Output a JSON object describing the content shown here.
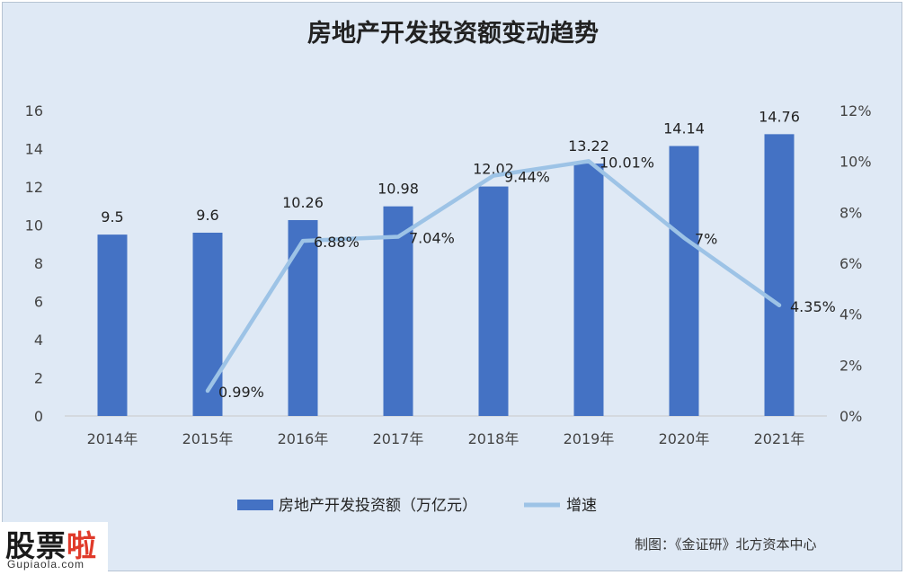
{
  "chart_data": {
    "type": "bar",
    "title": "房地产开发投资额变动趋势",
    "categories": [
      "2014年",
      "2015年",
      "2016年",
      "2017年",
      "2018年",
      "2019年",
      "2020年",
      "2021年"
    ],
    "series": [
      {
        "name": "房地产开发投资额（万亿元）",
        "type": "bar",
        "axis": "left",
        "values": [
          9.5,
          9.6,
          10.26,
          10.98,
          12.02,
          13.22,
          14.14,
          14.76
        ],
        "labels": [
          "9.5",
          "9.6",
          "10.26",
          "10.98",
          "12.02",
          "13.22",
          "14.14",
          "14.76"
        ]
      },
      {
        "name": "增速",
        "type": "line",
        "axis": "right",
        "values": [
          null,
          0.99,
          6.88,
          7.04,
          9.44,
          10.01,
          7.0,
          4.35
        ],
        "labels": [
          "",
          "0.99%",
          "6.88%",
          "7.04%",
          "9.44%",
          "10.01%",
          "7%",
          "4.35%"
        ]
      }
    ],
    "y_left": {
      "ylim": [
        0,
        16
      ],
      "ticks": [
        "0",
        "2",
        "4",
        "6",
        "8",
        "10",
        "12",
        "14",
        "16"
      ]
    },
    "y_right": {
      "ylim": [
        0,
        12
      ],
      "ticks": [
        "0%",
        "2%",
        "4%",
        "6%",
        "8%",
        "10%",
        "12%"
      ]
    },
    "legend_position": "bottom",
    "grid": false,
    "colors": {
      "bar": "#4472c4",
      "line": "#9dc3e6",
      "background": "#dfe9f5"
    }
  },
  "credit": "制图：《金证研》北方资本中心",
  "watermark": {
    "logo_black": "股票",
    "logo_red": "啦",
    "url": "Gupiaola.com"
  }
}
